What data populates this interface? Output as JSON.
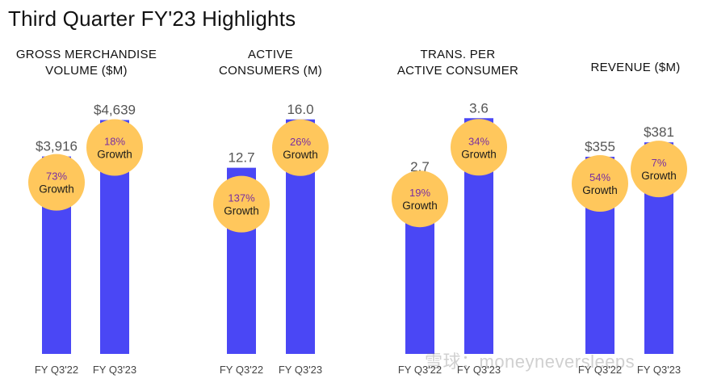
{
  "title": "Third Quarter FY'23 Highlights",
  "colors": {
    "bar": "#4a47f5",
    "bubble": "#ffc75c",
    "pct_text": "#7a2fa0"
  },
  "growth_label": "Growth",
  "watermark": "雪球：moneyneversleeps",
  "chart_data": [
    {
      "type": "bar",
      "title_lines": [
        "GROSS MERCHANDISE",
        "VOLUME ($M)"
      ],
      "categories": [
        "FY Q3'22",
        "FY Q3'23"
      ],
      "values": [
        3916,
        4639
      ],
      "value_labels": [
        "$3,916",
        "$4,639"
      ],
      "growth": [
        "73%",
        "18%"
      ],
      "ylim": [
        0,
        5000
      ]
    },
    {
      "type": "bar",
      "title_lines": [
        "ACTIVE",
        "CONSUMERS (M)"
      ],
      "categories": [
        "FY Q3'22",
        "FY Q3'23"
      ],
      "values": [
        12.7,
        16.0
      ],
      "value_labels": [
        "12.7",
        "16.0"
      ],
      "growth": [
        "137%",
        "26%"
      ],
      "ylim": [
        0,
        17.2
      ]
    },
    {
      "type": "bar",
      "title_lines": [
        "TRANS. PER",
        "ACTIVE CONSUMER"
      ],
      "categories": [
        "FY Q3'22",
        "FY Q3'23"
      ],
      "values": [
        2.7,
        3.6
      ],
      "value_labels": [
        "2.7",
        "3.6"
      ],
      "growth": [
        "19%",
        "34%"
      ],
      "ylim": [
        0,
        3.85
      ]
    },
    {
      "type": "bar",
      "title_lines": [
        "REVENUE ($M)"
      ],
      "categories": [
        "FY Q3'22",
        "FY Q3'23"
      ],
      "values": [
        355,
        381
      ],
      "value_labels": [
        "$355",
        "$381"
      ],
      "growth": [
        "54%",
        "7%"
      ],
      "ylim": [
        0,
        454
      ]
    }
  ]
}
